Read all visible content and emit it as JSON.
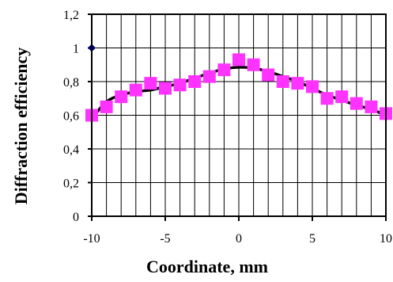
{
  "chart_data": {
    "type": "scatter",
    "title": "",
    "xlabel": "Coordinate, mm",
    "ylabel": "Diffraction efficiency",
    "xlim": [
      -10,
      10
    ],
    "ylim": [
      0,
      1.2
    ],
    "grid": "vertical lines at every 1 mm; horizontal lines at every 0.2",
    "x_ticks": [
      "-10",
      "-5",
      "0",
      "5",
      "10"
    ],
    "y_ticks": [
      "0",
      "0,2",
      "0,4",
      "0,6",
      "0,8",
      "1",
      "1,2"
    ],
    "series": [
      {
        "marker": "square",
        "color": "#ff33ff",
        "points": [
          [
            -10,
            0.6
          ],
          [
            -9,
            0.65
          ],
          [
            -8,
            0.71
          ],
          [
            -7,
            0.75
          ],
          [
            -6,
            0.79
          ],
          [
            -5,
            0.76
          ],
          [
            -4,
            0.78
          ],
          [
            -3,
            0.8
          ],
          [
            -2,
            0.83
          ],
          [
            -1,
            0.87
          ],
          [
            0,
            0.93
          ],
          [
            1,
            0.9
          ],
          [
            2,
            0.84
          ],
          [
            3,
            0.8
          ],
          [
            4,
            0.79
          ],
          [
            5,
            0.77
          ],
          [
            6,
            0.7
          ],
          [
            7,
            0.71
          ],
          [
            8,
            0.67
          ],
          [
            9,
            0.65
          ],
          [
            10,
            0.61
          ]
        ]
      },
      {
        "marker": "diamond",
        "color": "#000080",
        "points": [
          [
            -10,
            1.0
          ]
        ]
      },
      {
        "marker": "line",
        "color": "#000000",
        "points": [
          [
            -10,
            0.58
          ],
          [
            -9,
            0.68
          ],
          [
            -8,
            0.72
          ],
          [
            -7,
            0.74
          ],
          [
            -6,
            0.75
          ],
          [
            -5,
            0.77
          ],
          [
            -4,
            0.79
          ],
          [
            -3,
            0.82
          ],
          [
            -2,
            0.85
          ],
          [
            -1,
            0.875
          ],
          [
            0,
            0.885
          ],
          [
            1,
            0.88
          ],
          [
            2,
            0.86
          ],
          [
            3,
            0.83
          ],
          [
            4,
            0.8
          ],
          [
            5,
            0.76
          ],
          [
            6,
            0.72
          ],
          [
            7,
            0.69
          ],
          [
            8,
            0.66
          ],
          [
            9,
            0.635
          ],
          [
            10,
            0.6
          ]
        ]
      }
    ]
  }
}
